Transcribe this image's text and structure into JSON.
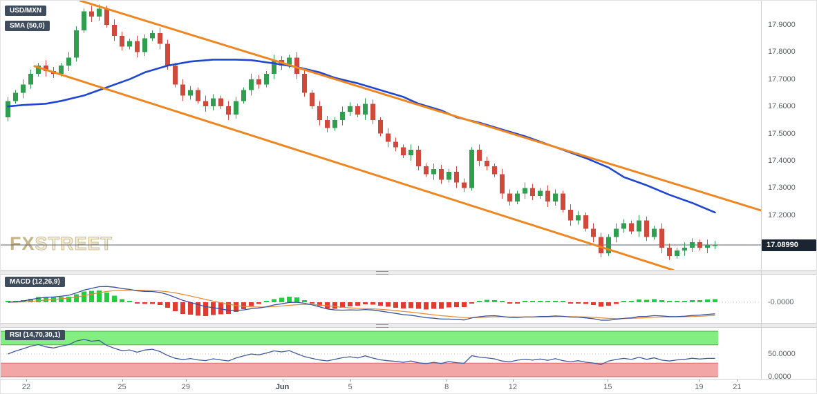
{
  "header": {
    "symbol_badge": "USD/MXN",
    "sma_badge": "SMA (50,0)"
  },
  "watermark": {
    "part1": "FX",
    "part2": "STREET"
  },
  "price_scale": {
    "labels": [
      "17.9000",
      "17.8000",
      "17.7000",
      "17.6000",
      "17.5000",
      "17.4000",
      "17.3000",
      "17.2000"
    ],
    "current_price_label": "17.08990"
  },
  "panels": {
    "macd": {
      "badge": "MACD (12,26,9)",
      "axis_label": "-0.0000"
    },
    "rsi": {
      "badge": "RSI (14,70,30,1)",
      "mid_label": "50.0000",
      "low_label": "0.0000"
    }
  },
  "colors": {
    "candle_up": "#2f9e4f",
    "candle_down": "#d1493b",
    "sma": "#1f46cf",
    "channel": "#ee8722",
    "macd_line": "#3450a0",
    "signal_line": "#e8872b",
    "hist_up": "#1fce43",
    "hist_down": "#e23a2e",
    "rsi_line": "#41599c",
    "rsi_band_high_fill": "#83ef83",
    "rsi_band_high_edge": "#3faf4f",
    "rsi_band_low_fill": "#f2a6a6",
    "rsi_band_low_edge": "#d46a6a",
    "badge_bg": "#3e4c5e",
    "price_badge_bg": "#1b2531",
    "price_line": "#55606b",
    "grid_dotted": "#c9c9c9",
    "watermark": "#cab98e"
  },
  "chart_data": {
    "type": "candlestick",
    "title": "USD/MXN",
    "ylim": [
      17.0,
      17.99
    ],
    "price_gridlines": [
      17.9,
      17.8,
      17.7,
      17.6,
      17.5,
      17.4,
      17.3,
      17.2
    ],
    "current_price": 17.0899,
    "x_ticks": [
      {
        "label": "22",
        "i": 2.4
      },
      {
        "label": "25",
        "i": 15.0
      },
      {
        "label": "29",
        "i": 23.4
      },
      {
        "label": "Jun",
        "i": 36.1,
        "strong": true
      },
      {
        "label": "5",
        "i": 45.0
      },
      {
        "label": "8",
        "i": 57.7
      },
      {
        "label": "12",
        "i": 66.4
      },
      {
        "label": "15",
        "i": 78.9
      },
      {
        "label": "19",
        "i": 90.9
      },
      {
        "label": "21",
        "i": 95.9
      }
    ],
    "candles_ohlc": [
      [
        17.56,
        17.635,
        17.545,
        17.62
      ],
      [
        17.62,
        17.66,
        17.61,
        17.65
      ],
      [
        17.65,
        17.7,
        17.63,
        17.68
      ],
      [
        17.68,
        17.735,
        17.665,
        17.72
      ],
      [
        17.72,
        17.76,
        17.71,
        17.75
      ],
      [
        17.75,
        17.77,
        17.71,
        17.73
      ],
      [
        17.73,
        17.745,
        17.705,
        17.72
      ],
      [
        17.72,
        17.76,
        17.71,
        17.75
      ],
      [
        17.75,
        17.8,
        17.73,
        17.78
      ],
      [
        17.78,
        17.895,
        17.765,
        17.88
      ],
      [
        17.88,
        17.96,
        17.87,
        17.95
      ],
      [
        17.95,
        17.97,
        17.91,
        17.93
      ],
      [
        17.93,
        17.975,
        17.915,
        17.96
      ],
      [
        17.96,
        17.97,
        17.89,
        17.9
      ],
      [
        17.9,
        17.92,
        17.84,
        17.86
      ],
      [
        17.86,
        17.875,
        17.805,
        17.82
      ],
      [
        17.82,
        17.85,
        17.81,
        17.84
      ],
      [
        17.84,
        17.86,
        17.78,
        17.8
      ],
      [
        17.8,
        17.865,
        17.785,
        17.85
      ],
      [
        17.85,
        17.88,
        17.84,
        17.87
      ],
      [
        17.87,
        17.89,
        17.81,
        17.83
      ],
      [
        17.83,
        17.845,
        17.735,
        17.75
      ],
      [
        17.75,
        17.76,
        17.67,
        17.68
      ],
      [
        17.68,
        17.7,
        17.62,
        17.64
      ],
      [
        17.64,
        17.675,
        17.625,
        17.66
      ],
      [
        17.66,
        17.67,
        17.61,
        17.62
      ],
      [
        17.62,
        17.64,
        17.58,
        17.6
      ],
      [
        17.6,
        17.645,
        17.585,
        17.63
      ],
      [
        17.63,
        17.64,
        17.59,
        17.6
      ],
      [
        17.6,
        17.62,
        17.55,
        17.57
      ],
      [
        17.57,
        17.635,
        17.555,
        17.62
      ],
      [
        17.62,
        17.67,
        17.61,
        17.66
      ],
      [
        17.66,
        17.72,
        17.64,
        17.7
      ],
      [
        17.7,
        17.715,
        17.665,
        17.68
      ],
      [
        17.68,
        17.73,
        17.67,
        17.72
      ],
      [
        17.72,
        17.79,
        17.7,
        17.77
      ],
      [
        17.77,
        17.785,
        17.735,
        17.75
      ],
      [
        17.75,
        17.79,
        17.74,
        17.78
      ],
      [
        17.78,
        17.8,
        17.7,
        17.72
      ],
      [
        17.72,
        17.735,
        17.635,
        17.65
      ],
      [
        17.65,
        17.66,
        17.59,
        17.6
      ],
      [
        17.6,
        17.62,
        17.53,
        17.55
      ],
      [
        17.55,
        17.565,
        17.505,
        17.52
      ],
      [
        17.52,
        17.56,
        17.51,
        17.55
      ],
      [
        17.55,
        17.6,
        17.53,
        17.58
      ],
      [
        17.58,
        17.615,
        17.565,
        17.6
      ],
      [
        17.6,
        17.61,
        17.56,
        17.57
      ],
      [
        17.57,
        17.63,
        17.55,
        17.61
      ],
      [
        17.61,
        17.625,
        17.535,
        17.55
      ],
      [
        17.55,
        17.56,
        17.49,
        17.5
      ],
      [
        17.5,
        17.52,
        17.45,
        17.47
      ],
      [
        17.47,
        17.485,
        17.435,
        17.45
      ],
      [
        17.45,
        17.46,
        17.41,
        17.42
      ],
      [
        17.42,
        17.46,
        17.4,
        17.44
      ],
      [
        17.44,
        17.455,
        17.365,
        17.38
      ],
      [
        17.38,
        17.39,
        17.34,
        17.35
      ],
      [
        17.35,
        17.39,
        17.33,
        17.37
      ],
      [
        17.37,
        17.385,
        17.315,
        17.33
      ],
      [
        17.33,
        17.37,
        17.32,
        17.36
      ],
      [
        17.36,
        17.38,
        17.3,
        17.32
      ],
      [
        17.32,
        17.335,
        17.285,
        17.3
      ],
      [
        17.3,
        17.45,
        17.29,
        17.44
      ],
      [
        17.44,
        17.46,
        17.38,
        17.4
      ],
      [
        17.4,
        17.415,
        17.365,
        17.38
      ],
      [
        17.38,
        17.39,
        17.34,
        17.35
      ],
      [
        17.35,
        17.37,
        17.26,
        17.28
      ],
      [
        17.28,
        17.295,
        17.235,
        17.25
      ],
      [
        17.25,
        17.29,
        17.24,
        17.28
      ],
      [
        17.28,
        17.32,
        17.26,
        17.3
      ],
      [
        17.3,
        17.315,
        17.255,
        17.27
      ],
      [
        17.27,
        17.3,
        17.26,
        17.29
      ],
      [
        17.29,
        17.31,
        17.23,
        17.25
      ],
      [
        17.25,
        17.295,
        17.235,
        17.28
      ],
      [
        17.28,
        17.29,
        17.21,
        17.22
      ],
      [
        17.22,
        17.24,
        17.16,
        17.18
      ],
      [
        17.18,
        17.215,
        17.165,
        17.2
      ],
      [
        17.2,
        17.21,
        17.14,
        17.15
      ],
      [
        17.15,
        17.17,
        17.1,
        17.12
      ],
      [
        17.12,
        17.135,
        17.045,
        17.06
      ],
      [
        17.06,
        17.13,
        17.05,
        17.12
      ],
      [
        17.12,
        17.17,
        17.1,
        17.15
      ],
      [
        17.15,
        17.185,
        17.135,
        17.17
      ],
      [
        17.17,
        17.18,
        17.13,
        17.14
      ],
      [
        17.14,
        17.2,
        17.12,
        17.18
      ],
      [
        17.18,
        17.195,
        17.105,
        17.12
      ],
      [
        17.12,
        17.16,
        17.11,
        17.15
      ],
      [
        17.15,
        17.17,
        17.06,
        17.08
      ],
      [
        17.08,
        17.095,
        17.035,
        17.05
      ],
      [
        17.05,
        17.08,
        17.04,
        17.07
      ],
      [
        17.07,
        17.1,
        17.05,
        17.08
      ],
      [
        17.08,
        17.115,
        17.065,
        17.1
      ],
      [
        17.1,
        17.11,
        17.07,
        17.08
      ],
      [
        17.08,
        17.11,
        17.06,
        17.09
      ],
      [
        17.09,
        17.105,
        17.075,
        17.09
      ]
    ],
    "sma50": {
      "period": 50,
      "points": [
        [
          0,
          17.6
        ],
        [
          2,
          17.605
        ],
        [
          5,
          17.61
        ],
        [
          7,
          17.62
        ],
        [
          10,
          17.64
        ],
        [
          13,
          17.67
        ],
        [
          16,
          17.7
        ],
        [
          18,
          17.725
        ],
        [
          21,
          17.75
        ],
        [
          24,
          17.765
        ],
        [
          27,
          17.772
        ],
        [
          30,
          17.772
        ],
        [
          32,
          17.77
        ],
        [
          35,
          17.758
        ],
        [
          38,
          17.745
        ],
        [
          41,
          17.725
        ],
        [
          43,
          17.705
        ],
        [
          46,
          17.685
        ],
        [
          49,
          17.66
        ],
        [
          52,
          17.635
        ],
        [
          54,
          17.61
        ],
        [
          57,
          17.585
        ],
        [
          59,
          17.56
        ],
        [
          62,
          17.54
        ],
        [
          65,
          17.515
        ],
        [
          68,
          17.49
        ],
        [
          70,
          17.47
        ],
        [
          73,
          17.44
        ],
        [
          76,
          17.41
        ],
        [
          79,
          17.375
        ],
        [
          81,
          17.34
        ],
        [
          84,
          17.31
        ],
        [
          87,
          17.275
        ],
        [
          90,
          17.245
        ],
        [
          93,
          17.21
        ]
      ]
    },
    "channel": {
      "upper": [
        [
          9.5,
          17.989
        ],
        [
          100.5,
          17.205
        ]
      ],
      "lower": [
        [
          3.5,
          17.748
        ],
        [
          87.5,
          16.998
        ]
      ]
    },
    "indicators": {
      "macd": {
        "fast": 12,
        "slow": 26,
        "signal": 9,
        "axis_label": "-0.0000"
      },
      "rsi": {
        "period": 14,
        "overbought": 70,
        "oversold": 30,
        "smoothing": 1,
        "axis_labels": [
          "50.0000",
          "0.0000"
        ]
      }
    }
  }
}
